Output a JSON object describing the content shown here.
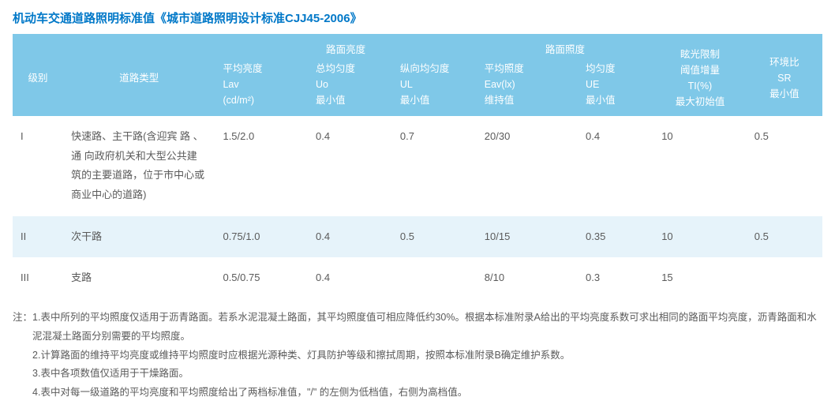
{
  "title": "机动车交通道路照明标准值《城市道路照明设计标准CJJ45-2006》",
  "colors": {
    "header_bg": "#7fc8e8",
    "header_text": "#ffffff",
    "title_text": "#0078c8",
    "body_text": "#5a5a5a",
    "band_a": "#ffffff",
    "band_b": "#e6f3fa"
  },
  "header": {
    "level": "级别",
    "road_type": "道路类型",
    "group_luminance": "路面亮度",
    "group_illuminance": "路面照度",
    "lav": "平均亮度\nLav\n(cd/m²)",
    "uo": "总均匀度\nUo\n最小值",
    "ul": "纵向均匀度\nUL\n最小值",
    "eav": "平均照度\nEav(lx)\n维持值",
    "ue": "均匀度\nUE\n最小值",
    "ti": "眩光限制\n阈值增量\nTI(%)\n最大初始值",
    "sr": "环境比\nSR\n最小值"
  },
  "rows": [
    {
      "level": "I",
      "road_type": "快速路、主干路(含迎宾 路 、 通 向政府机关和大型公共建筑的主要道路，位于市中心或商业中心的道路)",
      "lav": "1.5/2.0",
      "uo": "0.4",
      "ul": "0.7",
      "eav": "20/30",
      "ue": "0.4",
      "ti": "10",
      "sr": "0.5"
    },
    {
      "level": "II",
      "road_type": "次干路",
      "lav": "0.75/1.0",
      "uo": "0.4",
      "ul": "0.5",
      "eav": "10/15",
      "ue": "0.35",
      "ti": "10",
      "sr": "0.5"
    },
    {
      "level": "III",
      "road_type": "支路",
      "lav": "0.5/0.75",
      "uo": "0.4",
      "ul": "",
      "eav": "8/10",
      "ue": "0.3",
      "ti": "15",
      "sr": ""
    }
  ],
  "notes": {
    "prefix": "注：",
    "items": [
      "1.表中所列的平均照度仅适用于沥青路面。若系水泥混凝土路面，其平均照度值可相应降低约30%。根据本标准附录A给出的平均亮度系数可求出相同的路面平均亮度，沥青路面和水泥混凝土路面分别需要的平均照度。",
      "2.计算路面的维持平均亮度或维持平均照度时应根据光源种类、灯具防护等级和擦拭周期，按照本标准附录B确定维护系数。",
      "3.表中各项数值仅适用于干燥路面。",
      "4.表中对每一级道路的平均亮度和平均照度给出了两档标准值，\"/\" 的左侧为低档值，右侧为高档值。"
    ]
  }
}
